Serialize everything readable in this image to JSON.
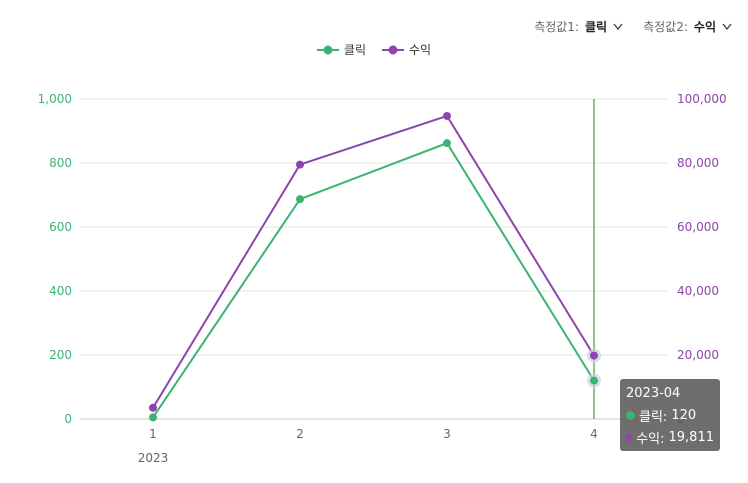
{
  "controls": {
    "measure1": {
      "label": "측정값1:",
      "value": "클릭"
    },
    "measure2": {
      "label": "측정값2:",
      "value": "수익"
    }
  },
  "colors": {
    "clicks": "#3cb371",
    "revenue": "#8e44ad"
  },
  "chart_data": {
    "type": "line",
    "categories": [
      "1",
      "2",
      "3",
      "4"
    ],
    "x_group_label": "2023",
    "series": [
      {
        "name": "클릭",
        "axis": "left",
        "values": [
          5,
          687,
          862,
          120
        ]
      },
      {
        "name": "수익",
        "axis": "right",
        "values": [
          3500,
          79500,
          94700,
          19811
        ]
      }
    ],
    "y_left": {
      "range": [
        0,
        1000
      ],
      "ticks": [
        "0",
        "200",
        "400",
        "600",
        "800",
        "1,000"
      ]
    },
    "y_right": {
      "range": [
        0,
        100000
      ],
      "ticks": [
        "0",
        "20,000",
        "40,000",
        "60,000",
        "80,000",
        "100,000"
      ]
    },
    "grid": true,
    "legend_position": "top-center",
    "hover_index": 3
  },
  "tooltip": {
    "title": "2023-04",
    "rows": [
      {
        "label": "클릭:",
        "value": "120"
      },
      {
        "label": "수익:",
        "value": "19,811"
      }
    ]
  }
}
